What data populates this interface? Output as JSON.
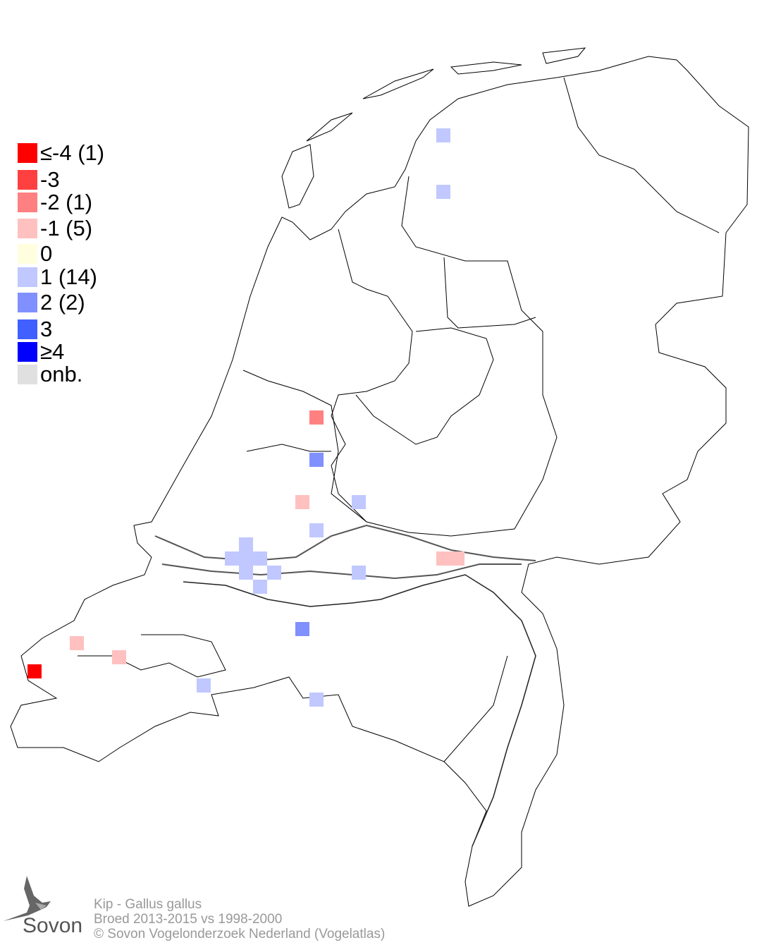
{
  "legend": [
    {
      "label": "≤-4 (1)",
      "color": "#ff0000"
    },
    {
      "label": "-3",
      "color": "#ff4040"
    },
    {
      "label": "-2 (1)",
      "color": "#ff8080"
    },
    {
      "label": "-1 (5)",
      "color": "#ffc0c0"
    },
    {
      "label": " 0",
      "color": "#ffffe0"
    },
    {
      "label": " 1 (14)",
      "color": "#c0c8ff"
    },
    {
      "label": " 2 (2)",
      "color": "#8090ff"
    },
    {
      "label": " 3",
      "color": "#4060ff"
    },
    {
      "label": "≥4",
      "color": "#0000ff"
    },
    {
      "label": "onb.",
      "color": "#e0e0e0"
    }
  ],
  "cells": [
    {
      "value": -4,
      "col": 1,
      "row": 46
    },
    {
      "value": -2,
      "col": 21,
      "row": 28
    },
    {
      "value": -1,
      "col": 20,
      "row": 34
    },
    {
      "value": -1,
      "col": 4,
      "row": 44
    },
    {
      "value": -1,
      "col": 7,
      "row": 45
    },
    {
      "value": -1,
      "col": 30,
      "row": 38
    },
    {
      "value": -1,
      "col": 31,
      "row": 38
    },
    {
      "value": 1,
      "col": 30,
      "row": 8
    },
    {
      "value": 1,
      "col": 30,
      "row": 12
    },
    {
      "value": 1,
      "col": 24,
      "row": 34
    },
    {
      "value": 1,
      "col": 21,
      "row": 36
    },
    {
      "value": 1,
      "col": 16,
      "row": 37
    },
    {
      "value": 1,
      "col": 15,
      "row": 38
    },
    {
      "value": 1,
      "col": 16,
      "row": 38
    },
    {
      "value": 1,
      "col": 17,
      "row": 38
    },
    {
      "value": 1,
      "col": 16,
      "row": 39
    },
    {
      "value": 1,
      "col": 18,
      "row": 39
    },
    {
      "value": 1,
      "col": 24,
      "row": 39
    },
    {
      "value": 1,
      "col": 17,
      "row": 40
    },
    {
      "value": 1,
      "col": 13,
      "row": 47
    },
    {
      "value": 1,
      "col": 21,
      "row": 48
    },
    {
      "value": 2,
      "col": 21,
      "row": 31
    },
    {
      "value": 2,
      "col": 20,
      "row": 43
    }
  ],
  "footer": {
    "species": "Kip - Gallus gallus",
    "period": "Broed 2013-2015 vs 1998-2000",
    "copyright": "© Sovon Vogelonderzoek Nederland (Vogelatlas)"
  },
  "logo": {
    "text": "Sovon"
  }
}
